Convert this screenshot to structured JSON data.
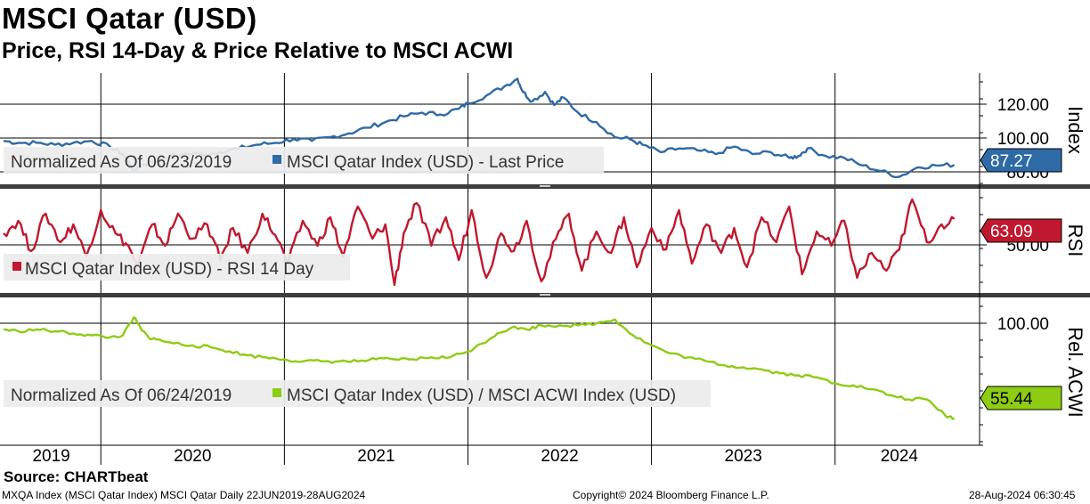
{
  "header": {
    "title": "MSCI Qatar (USD)",
    "subtitle": "Price, RSI 14-Day & Price Relative to MSCI ACWI"
  },
  "footer": {
    "source": "Source: CHARTbeat",
    "left": "MXQA Index (MSCI Qatar Index) MSCI Qatar  Daily 22JUN2019-28AUG2024",
    "center": "Copyright© 2024 Bloomberg Finance L.P.",
    "right": "28-Aug-2024 06:30:45"
  },
  "colors": {
    "price": "#2e6aa6",
    "rsi": "#c0182e",
    "relative": "#8dcc12",
    "price_label_bg": "#2e6aa6",
    "rsi_label_bg": "#c0182e",
    "relative_label_bg": "#8dcc12",
    "legend_bg": "#ebebeb",
    "separator": "#3d3d3d"
  },
  "chart_data": [
    {
      "type": "line",
      "panel": "price",
      "ylabel": "Index",
      "ylim": [
        76.5,
        136
      ],
      "yticks": [
        "120.00",
        "100.00",
        "80.00"
      ],
      "last_value_label": "87.27",
      "legend": {
        "note": "Normalized As Of 06/23/2019",
        "series": "MSCI Qatar Index (USD) - Last Price"
      },
      "x": [
        2019.47,
        2019.55,
        2019.65,
        2019.75,
        2019.85,
        2019.95,
        2020.05,
        2020.12,
        2020.18,
        2020.22,
        2020.28,
        2020.35,
        2020.45,
        2020.55,
        2020.65,
        2020.75,
        2020.85,
        2020.95,
        2021.05,
        2021.15,
        2021.25,
        2021.35,
        2021.45,
        2021.55,
        2021.65,
        2021.75,
        2021.85,
        2021.95,
        2022.0,
        2022.1,
        2022.2,
        2022.27,
        2022.3,
        2022.35,
        2022.42,
        2022.47,
        2022.52,
        2022.6,
        2022.7,
        2022.8,
        2022.88,
        2022.95,
        2023.05,
        2023.15,
        2023.25,
        2023.35,
        2023.45,
        2023.55,
        2023.65,
        2023.75,
        2023.8,
        2023.85,
        2023.95,
        2024.05,
        2024.15,
        2024.25,
        2024.35,
        2024.45,
        2024.55,
        2024.65
      ],
      "series": [
        {
          "name": "MSCI Qatar Index (USD) - Last Price",
          "values": [
            100,
            99,
            99,
            98,
            99,
            100,
            97,
            93,
            84,
            87,
            89,
            91,
            93,
            93,
            94,
            96,
            98,
            99,
            101,
            100,
            102,
            104,
            107,
            110,
            113,
            115,
            114,
            117,
            120,
            124,
            129,
            133,
            126,
            121,
            126,
            119,
            123,
            115,
            110,
            102,
            101,
            98,
            94,
            96,
            95,
            93,
            97,
            93,
            94,
            91,
            92,
            96,
            92,
            91,
            87,
            84,
            81,
            86,
            87,
            87.27
          ]
        }
      ]
    },
    {
      "type": "line",
      "panel": "rsi",
      "ylabel": "RSI",
      "ylim": [
        21,
        80
      ],
      "yticks": [
        "50.00"
      ],
      "last_value_label": "63.09",
      "legend": {
        "note": "",
        "series": "MSCI Qatar Index (USD) - RSI 14 Day"
      },
      "x": [
        2019.47,
        2019.55,
        2019.62,
        2019.7,
        2019.78,
        2019.85,
        2019.92,
        2020.0,
        2020.08,
        2020.15,
        2020.2,
        2020.28,
        2020.35,
        2020.42,
        2020.5,
        2020.58,
        2020.65,
        2020.72,
        2020.8,
        2020.88,
        2020.95,
        2021.02,
        2021.1,
        2021.18,
        2021.25,
        2021.32,
        2021.4,
        2021.48,
        2021.55,
        2021.6,
        2021.65,
        2021.72,
        2021.8,
        2021.88,
        2021.95,
        2022.02,
        2022.1,
        2022.18,
        2022.25,
        2022.32,
        2022.4,
        2022.48,
        2022.55,
        2022.62,
        2022.7,
        2022.78,
        2022.85,
        2022.92,
        2023.0,
        2023.08,
        2023.15,
        2023.22,
        2023.3,
        2023.38,
        2023.45,
        2023.52,
        2023.6,
        2023.68,
        2023.75,
        2023.82,
        2023.9,
        2023.98,
        2024.05,
        2024.12,
        2024.2,
        2024.28,
        2024.35,
        2024.42,
        2024.5,
        2024.58,
        2024.65
      ],
      "series": [
        {
          "name": "MSCI Qatar Index (USD) - RSI 14 Day",
          "values": [
            55,
            62,
            45,
            66,
            50,
            60,
            42,
            68,
            55,
            48,
            36,
            60,
            48,
            66,
            52,
            60,
            40,
            58,
            44,
            66,
            54,
            38,
            62,
            48,
            64,
            42,
            70,
            52,
            60,
            26,
            55,
            72,
            48,
            64,
            40,
            68,
            30,
            55,
            45,
            62,
            28,
            52,
            66,
            34,
            56,
            44,
            64,
            36,
            58,
            46,
            68,
            38,
            60,
            44,
            58,
            36,
            64,
            50,
            70,
            32,
            56,
            48,
            62,
            30,
            44,
            34,
            46,
            74,
            50,
            60,
            63.09
          ]
        }
      ]
    },
    {
      "type": "line",
      "panel": "relative",
      "ylabel": "Rel. ACWI",
      "ylim": [
        42,
        116
      ],
      "yticks": [
        "100.00"
      ],
      "last_value_label": "55.44",
      "legend": {
        "note": "Normalized As Of 06/24/2019",
        "series": "MSCI Qatar Index (USD) / MSCI ACWI Index (USD)"
      },
      "x": [
        2019.47,
        2019.55,
        2019.65,
        2019.75,
        2019.85,
        2019.95,
        2020.05,
        2020.12,
        2020.18,
        2020.22,
        2020.26,
        2020.3,
        2020.4,
        2020.5,
        2020.6,
        2020.7,
        2020.8,
        2020.9,
        2021.0,
        2021.1,
        2021.2,
        2021.3,
        2021.4,
        2021.5,
        2021.6,
        2021.7,
        2021.8,
        2021.9,
        2022.0,
        2022.08,
        2022.16,
        2022.24,
        2022.32,
        2022.4,
        2022.5,
        2022.6,
        2022.7,
        2022.8,
        2022.9,
        2023.0,
        2023.1,
        2023.2,
        2023.3,
        2023.4,
        2023.5,
        2023.6,
        2023.7,
        2023.8,
        2023.9,
        2024.0,
        2024.1,
        2024.2,
        2024.3,
        2024.4,
        2024.5,
        2024.6,
        2024.65
      ],
      "series": [
        {
          "name": "MSCI Qatar Index (USD) / MSCI ACWI Index (USD)",
          "values": [
            100,
            99,
            100,
            99,
            98,
            97,
            96,
            97,
            106,
            100,
            96,
            95,
            93,
            92,
            91,
            89,
            87,
            86,
            85,
            84,
            84,
            84,
            84,
            85,
            85,
            85,
            86,
            86,
            89,
            93,
            98,
            101,
            100,
            102,
            102,
            102,
            103,
            105,
            97,
            92,
            88,
            86,
            84,
            82,
            81,
            80,
            78,
            77,
            76,
            73,
            72,
            70,
            67,
            65,
            65,
            57,
            55.44
          ]
        }
      ]
    }
  ],
  "x_axis": {
    "labels": [
      "2019",
      "2020",
      "2021",
      "2022",
      "2023",
      "2024"
    ],
    "range": [
      2019.47,
      2024.7
    ]
  }
}
